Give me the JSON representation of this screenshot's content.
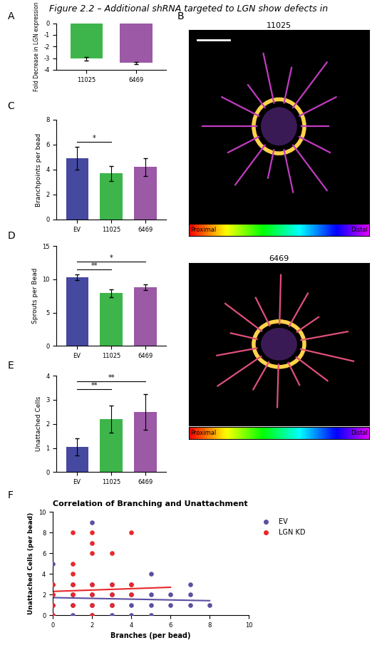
{
  "title": "Figure 2.2 – Additional shRNA targeted to LGN show defects in",
  "chart_data": [
    {
      "panel": "A",
      "type": "bar",
      "categories": [
        "11025",
        "6469"
      ],
      "values": [
        -3.05,
        -3.4
      ],
      "errors": [
        0.15,
        0.1
      ],
      "colors": [
        "#3db54a",
        "#9b59a6"
      ],
      "ylabel": "Fold Decrease in LGN expression",
      "ylim": [
        -4,
        0
      ],
      "yticks": [
        0,
        -1,
        -2,
        -3,
        -4
      ]
    },
    {
      "panel": "C",
      "type": "bar",
      "categories": [
        "EV",
        "11025",
        "6469"
      ],
      "values": [
        4.9,
        3.7,
        4.2
      ],
      "errors": [
        0.9,
        0.6,
        0.7
      ],
      "colors": [
        "#4549a0",
        "#3db54a",
        "#9b59a6"
      ],
      "ylabel": "Branchpoints per bead",
      "ylim": [
        0,
        8
      ],
      "yticks": [
        0,
        2,
        4,
        6,
        8
      ],
      "annotations": [
        {
          "from": "EV",
          "to": "11025",
          "text": "*"
        }
      ]
    },
    {
      "panel": "D",
      "type": "bar",
      "categories": [
        "EV",
        "11025",
        "6469"
      ],
      "values": [
        10.3,
        7.9,
        8.8
      ],
      "errors": [
        0.4,
        0.6,
        0.4
      ],
      "colors": [
        "#4549a0",
        "#3db54a",
        "#9b59a6"
      ],
      "ylabel": "Sprouts per Bead",
      "ylim": [
        0,
        15
      ],
      "yticks": [
        0,
        5,
        10,
        15
      ],
      "annotations": [
        {
          "from": "EV",
          "to": "11025",
          "text": "**"
        },
        {
          "from": "EV",
          "to": "6469",
          "text": "*"
        }
      ]
    },
    {
      "panel": "E",
      "type": "bar",
      "categories": [
        "EV",
        "11025",
        "6469"
      ],
      "values": [
        1.05,
        2.2,
        2.5
      ],
      "errors": [
        0.35,
        0.55,
        0.75
      ],
      "colors": [
        "#4549a0",
        "#3db54a",
        "#9b59a6"
      ],
      "ylabel": "Unattached Cells",
      "ylim": [
        0,
        4
      ],
      "yticks": [
        0,
        1,
        2,
        3,
        4
      ],
      "annotations": [
        {
          "from": "EV",
          "to": "11025",
          "text": "**"
        },
        {
          "from": "EV",
          "to": "6469",
          "text": "**"
        }
      ]
    },
    {
      "panel": "F",
      "type": "scatter",
      "title": "Correlation of Branching and Unattachment",
      "xlabel": "Branches (per bead)",
      "ylabel": "Unattached Cells (per bead)",
      "xlim": [
        0,
        10
      ],
      "xticks": [
        0,
        2,
        4,
        6,
        8,
        10
      ],
      "ylim": [
        0,
        10
      ],
      "yticks": [
        0,
        2,
        4,
        6,
        8,
        10
      ],
      "legend": "right",
      "series": [
        {
          "name": "EV",
          "color": "#5b4fa0",
          "marker": "o",
          "x": [
            0,
            0,
            0,
            0,
            0,
            1,
            1,
            1,
            1,
            2,
            2,
            2,
            2,
            2,
            3,
            3,
            3,
            3,
            4,
            4,
            4,
            4,
            5,
            5,
            5,
            5,
            6,
            6,
            7,
            7,
            7,
            8
          ],
          "values": [
            0,
            1,
            2,
            3,
            5,
            0,
            1,
            2,
            3,
            0,
            1,
            2,
            3,
            9,
            0,
            1,
            2,
            3,
            0,
            1,
            2,
            3,
            0,
            1,
            2,
            4,
            1,
            2,
            1,
            2,
            3,
            1
          ],
          "fit": {
            "x": [
              0,
              8
            ],
            "values": [
              1.7,
              1.4
            ]
          }
        },
        {
          "name": "LGN KD",
          "color": "#e8282b",
          "marker": "o",
          "x": [
            0,
            0,
            0,
            0,
            1,
            1,
            1,
            1,
            1,
            1,
            2,
            2,
            2,
            2,
            2,
            2,
            2,
            3,
            3,
            3,
            3,
            4,
            4,
            4
          ],
          "values": [
            0,
            1,
            2,
            3,
            1,
            2,
            3,
            4,
            5,
            8,
            0,
            1,
            2,
            3,
            6,
            7,
            8,
            1,
            2,
            3,
            6,
            2,
            3,
            8
          ],
          "fit": {
            "x": [
              0,
              6
            ],
            "values": [
              2.3,
              2.7
            ]
          }
        }
      ]
    }
  ],
  "panel_b": {
    "panel": "B",
    "images": [
      "11025",
      "6469"
    ],
    "scale_labels": [
      "Proximal",
      "Distal"
    ]
  }
}
